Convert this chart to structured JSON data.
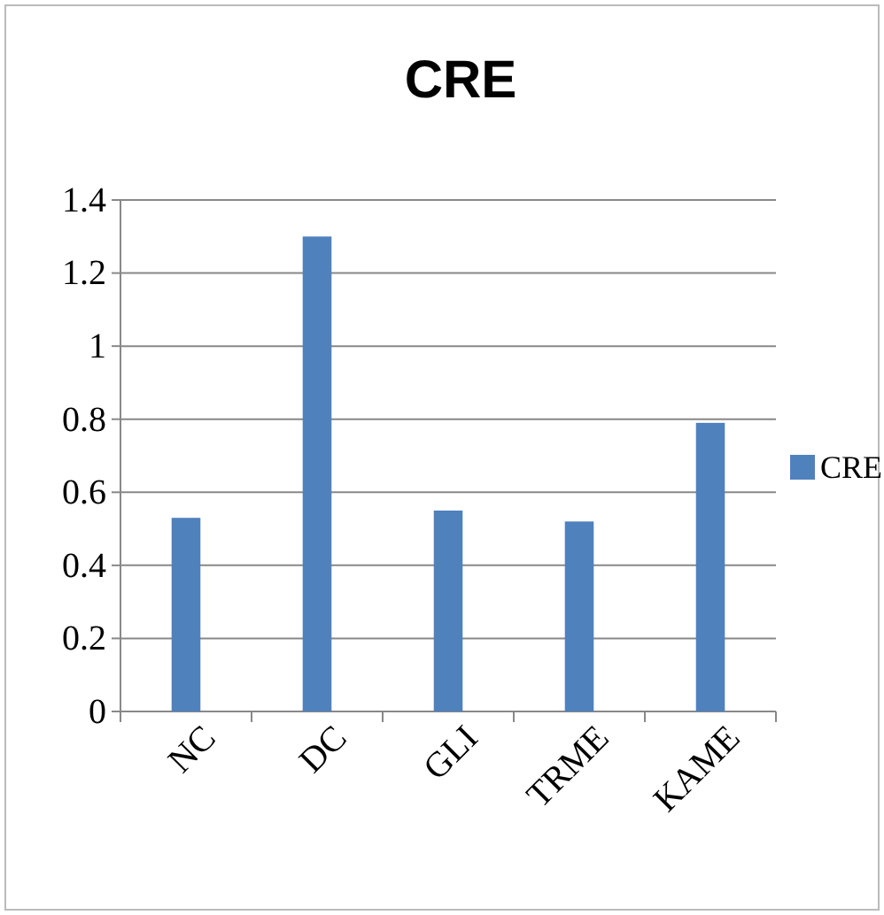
{
  "chart_data": {
    "type": "bar",
    "title": "CRE",
    "categories": [
      "NC",
      "DC",
      "GLI",
      "TRME",
      "KAME"
    ],
    "series": [
      {
        "name": "CRE",
        "color": "#4f81bd",
        "values": [
          0.53,
          1.3,
          0.55,
          0.52,
          0.79
        ]
      }
    ],
    "ylim": [
      0,
      1.4
    ],
    "yticks": [
      0,
      {
        "value": 0.2,
        "label": "0.2"
      },
      {
        "value": 0.4,
        "label": "0.4"
      },
      {
        "value": 0.6,
        "label": "0.6"
      },
      {
        "value": 0.8,
        "label": "0.8"
      },
      1,
      {
        "value": 1.2,
        "label": "1.2"
      },
      {
        "value": 1.4,
        "label": "1.4"
      }
    ],
    "grid": "y",
    "legend": "right"
  }
}
